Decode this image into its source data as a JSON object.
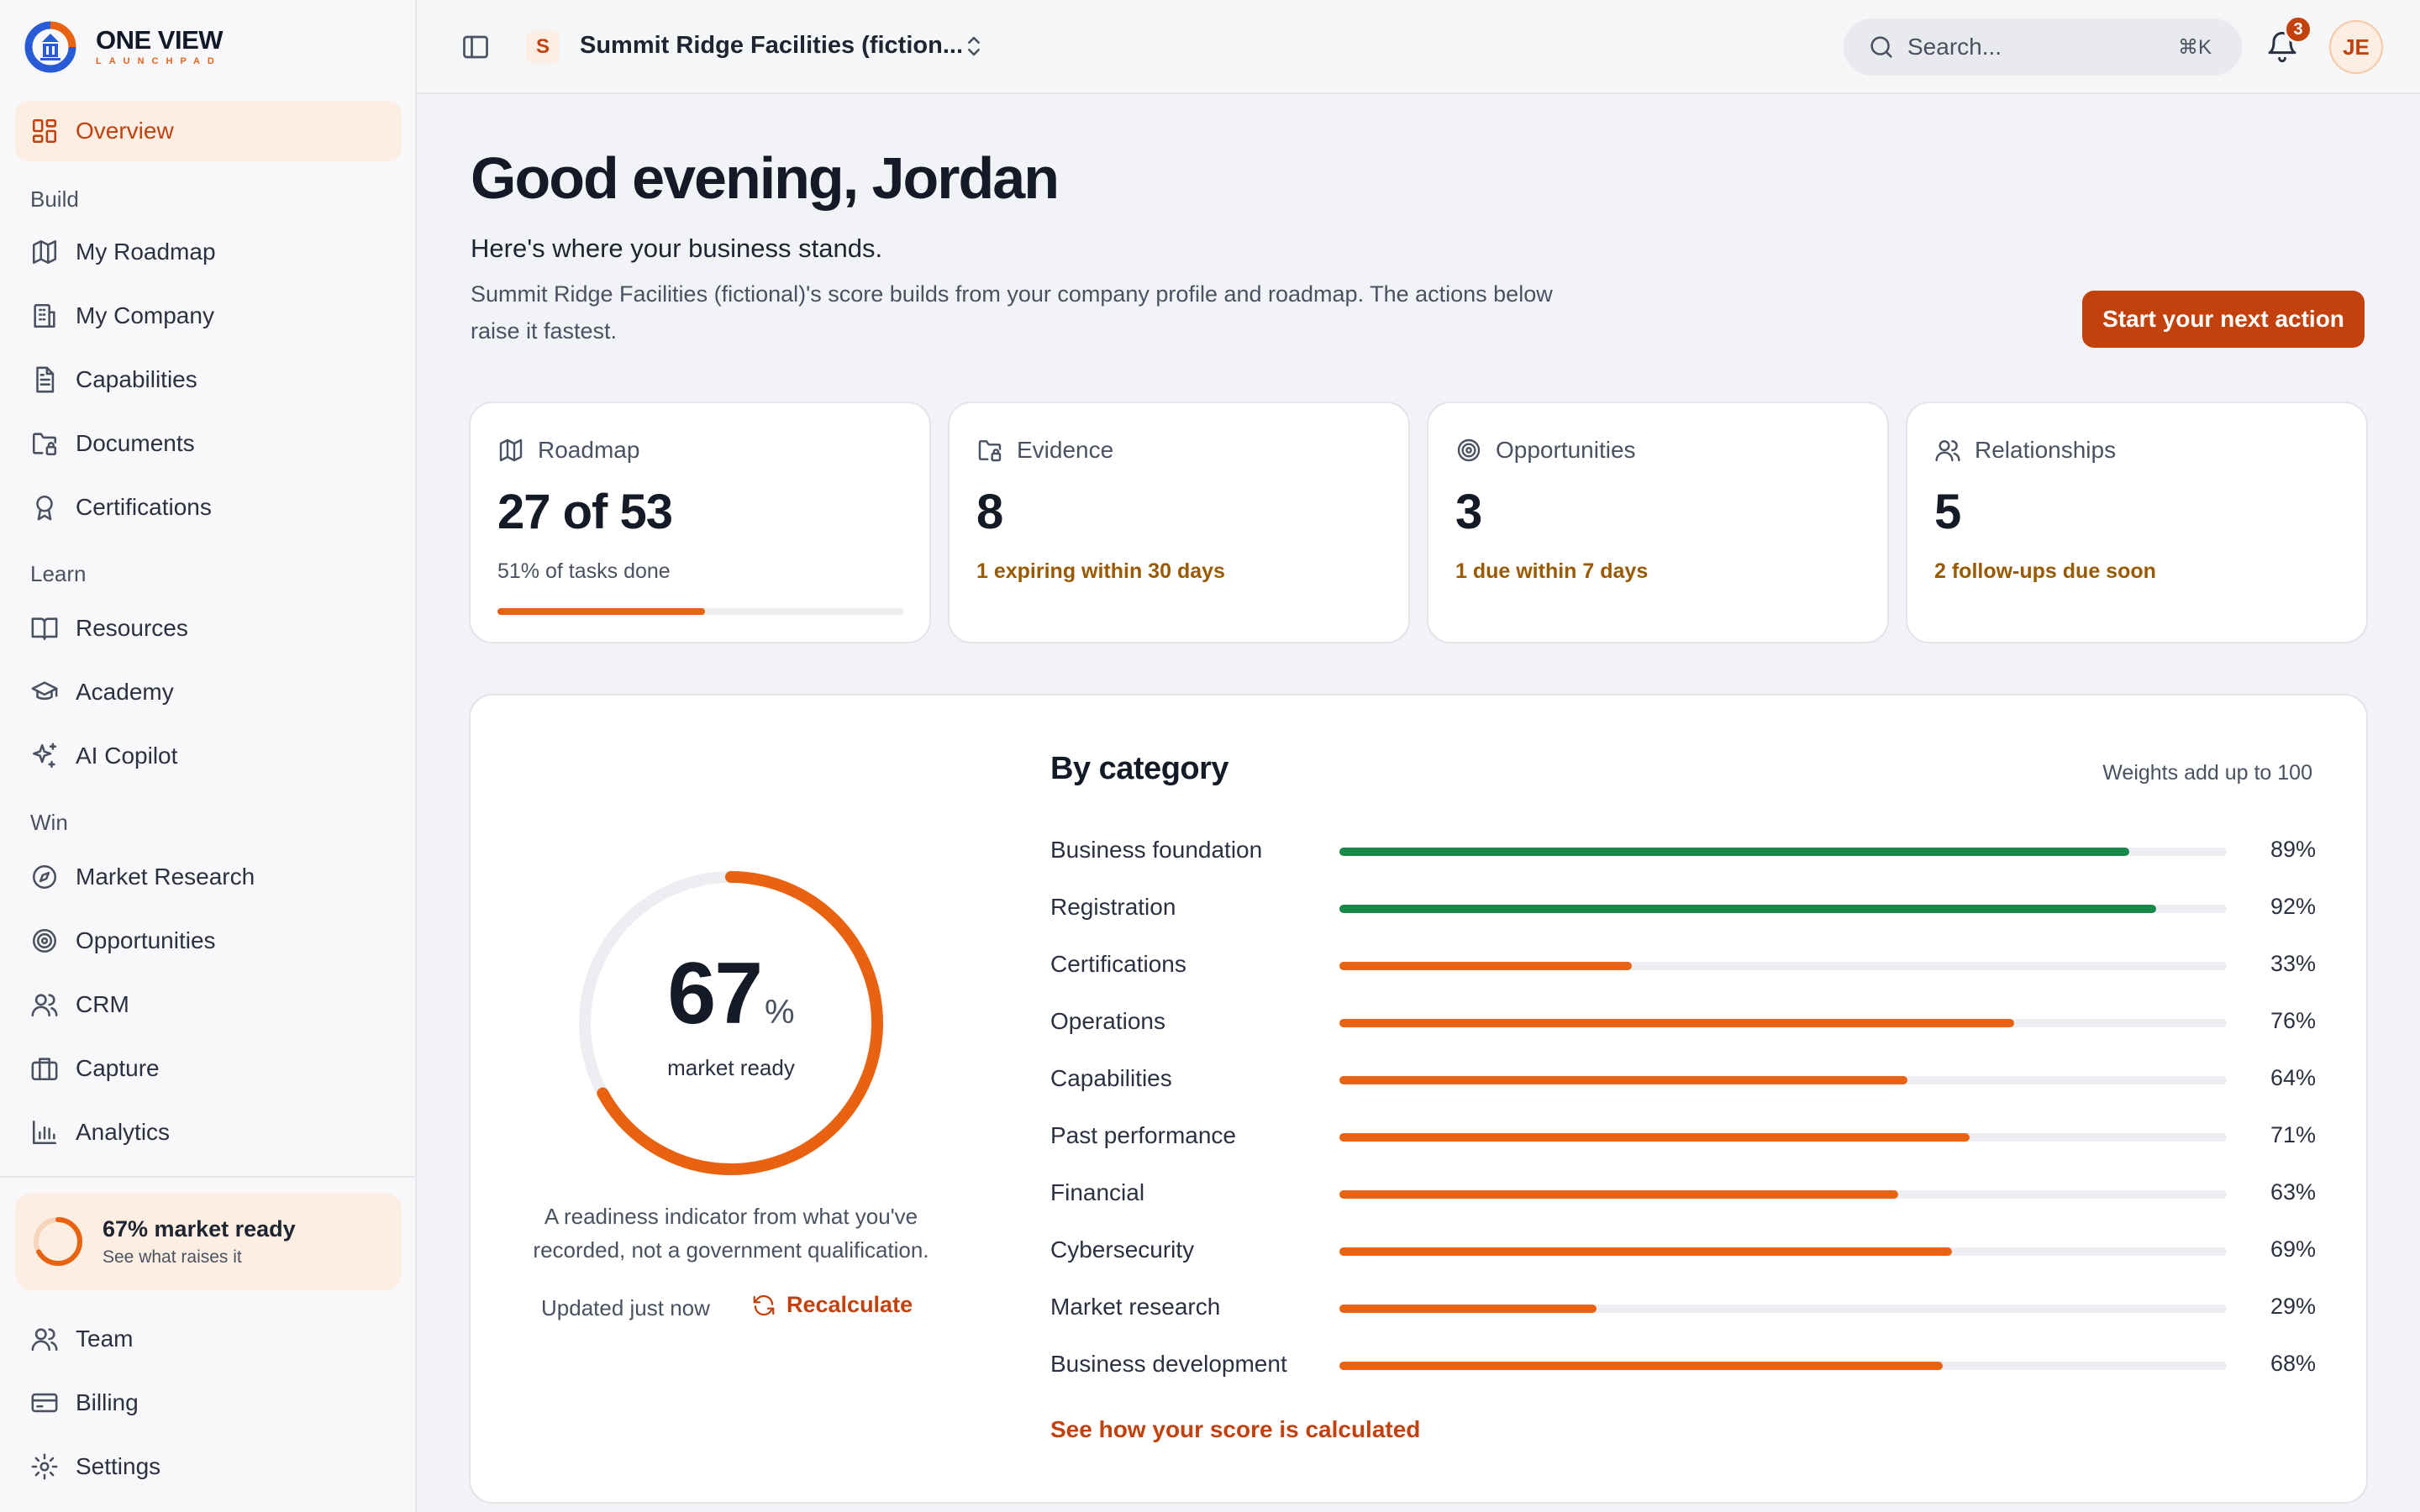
{
  "app": {
    "logo_title": "ONE VIEW",
    "logo_subtitle": "LAUNCHPAD"
  },
  "colors": {
    "accent": "#c2410c",
    "accent_bar": "#e8620f",
    "success_bar": "#16884a",
    "warn_text": "#9a5a00"
  },
  "sidebar": {
    "overview": {
      "label": "Overview",
      "icon": "grid-icon"
    },
    "sections": [
      {
        "title": "Build",
        "items": [
          {
            "label": "My Roadmap",
            "icon": "map-icon"
          },
          {
            "label": "My Company",
            "icon": "building-icon"
          },
          {
            "label": "Capabilities",
            "icon": "document-icon"
          },
          {
            "label": "Documents",
            "icon": "folder-lock-icon"
          },
          {
            "label": "Certifications",
            "icon": "award-icon"
          }
        ]
      },
      {
        "title": "Learn",
        "items": [
          {
            "label": "Resources",
            "icon": "book-icon"
          },
          {
            "label": "Academy",
            "icon": "graduation-cap-icon"
          },
          {
            "label": "AI Copilot",
            "icon": "sparkles-icon"
          }
        ]
      },
      {
        "title": "Win",
        "items": [
          {
            "label": "Market Research",
            "icon": "compass-icon"
          },
          {
            "label": "Opportunities",
            "icon": "target-icon"
          },
          {
            "label": "CRM",
            "icon": "users-icon"
          },
          {
            "label": "Capture",
            "icon": "briefcase-icon"
          },
          {
            "label": "Analytics",
            "icon": "bar-chart-icon"
          }
        ]
      }
    ],
    "ready_card": {
      "title": "67% market ready",
      "subtitle": "See what raises it",
      "value": 0.67
    },
    "footer_items": [
      {
        "label": "Team",
        "icon": "users-icon"
      },
      {
        "label": "Billing",
        "icon": "credit-card-icon"
      },
      {
        "label": "Settings",
        "icon": "gear-icon"
      }
    ]
  },
  "header": {
    "org_initial": "S",
    "org_name": "Summit Ridge Facilities (fiction...",
    "search_placeholder": "Search...",
    "search_shortcut": "⌘K",
    "notification_count": "3",
    "avatar_initials": "JE"
  },
  "main": {
    "greeting": "Good evening, Jordan",
    "subhead": "Here's where your business stands.",
    "description": "Summit Ridge Facilities (fictional)'s score builds from your company profile and roadmap. The actions below raise it fastest.",
    "cta_label": "Start your next action",
    "stats": [
      {
        "label": "Roadmap",
        "icon": "map-icon",
        "value": "27 of 53",
        "note": "51% of tasks done",
        "progress": 0.51,
        "warn": false
      },
      {
        "label": "Evidence",
        "icon": "folder-lock-icon",
        "value": "8",
        "note": "1 expiring within 30 days",
        "warn": true
      },
      {
        "label": "Opportunities",
        "icon": "target-icon",
        "value": "3",
        "note": "1 due within 7 days",
        "warn": true
      },
      {
        "label": "Relationships",
        "icon": "users-icon",
        "value": "5",
        "note": "2 follow-ups due soon",
        "warn": true
      }
    ],
    "score": {
      "value": "67",
      "unit": "%",
      "fraction": 0.67,
      "label": "market ready",
      "caption": "A readiness indicator from what you've recorded, not a government qualification.",
      "updated": "Updated just now",
      "recalculate_label": "Recalculate"
    },
    "categories": {
      "title": "By category",
      "note": "Weights add up to 100",
      "link": "See how your score is calculated",
      "items": [
        {
          "label": "Business foundation",
          "value": 89,
          "pct": "89%",
          "status": "success"
        },
        {
          "label": "Registration",
          "value": 92,
          "pct": "92%",
          "status": "success"
        },
        {
          "label": "Certifications",
          "value": 33,
          "pct": "33%",
          "status": "accent"
        },
        {
          "label": "Operations",
          "value": 76,
          "pct": "76%",
          "status": "accent"
        },
        {
          "label": "Capabilities",
          "value": 64,
          "pct": "64%",
          "status": "accent"
        },
        {
          "label": "Past performance",
          "value": 71,
          "pct": "71%",
          "status": "accent"
        },
        {
          "label": "Financial",
          "value": 63,
          "pct": "63%",
          "status": "accent"
        },
        {
          "label": "Cybersecurity",
          "value": 69,
          "pct": "69%",
          "status": "accent"
        },
        {
          "label": "Market research",
          "value": 29,
          "pct": "29%",
          "status": "accent"
        },
        {
          "label": "Business development",
          "value": 68,
          "pct": "68%",
          "status": "accent"
        }
      ]
    }
  }
}
